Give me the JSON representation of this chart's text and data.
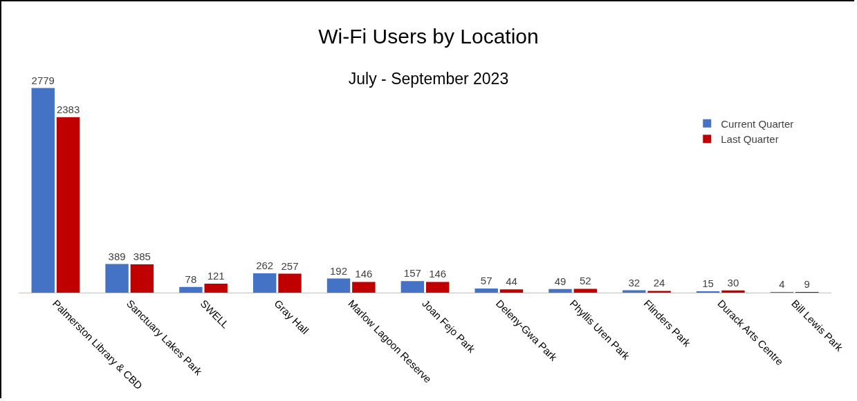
{
  "chart_data": {
    "type": "bar",
    "title": "Wi-Fi Users by Location",
    "subtitle": "July - September 2023",
    "categories": [
      "Palmerston Library & CBD",
      "Sanctuary Lakes Park",
      "SWELL",
      "Gray Hall",
      "Marlow Lagoon Reserve",
      "Joan Fejo Park",
      "Deleny-Gwa Park",
      "Phyllis Uren Park",
      "Flinders Park",
      "Durack Arts Centre",
      "Bill Lewis Park"
    ],
    "series": [
      {
        "name": "Current Quarter",
        "color": "#4472c4",
        "values": [
          2779,
          389,
          78,
          262,
          192,
          157,
          57,
          49,
          32,
          15,
          4
        ]
      },
      {
        "name": "Last Quarter",
        "color": "#c00000",
        "values": [
          2383,
          385,
          121,
          257,
          146,
          146,
          44,
          52,
          24,
          30,
          9
        ]
      }
    ],
    "data_labels": true,
    "legend": "right"
  }
}
